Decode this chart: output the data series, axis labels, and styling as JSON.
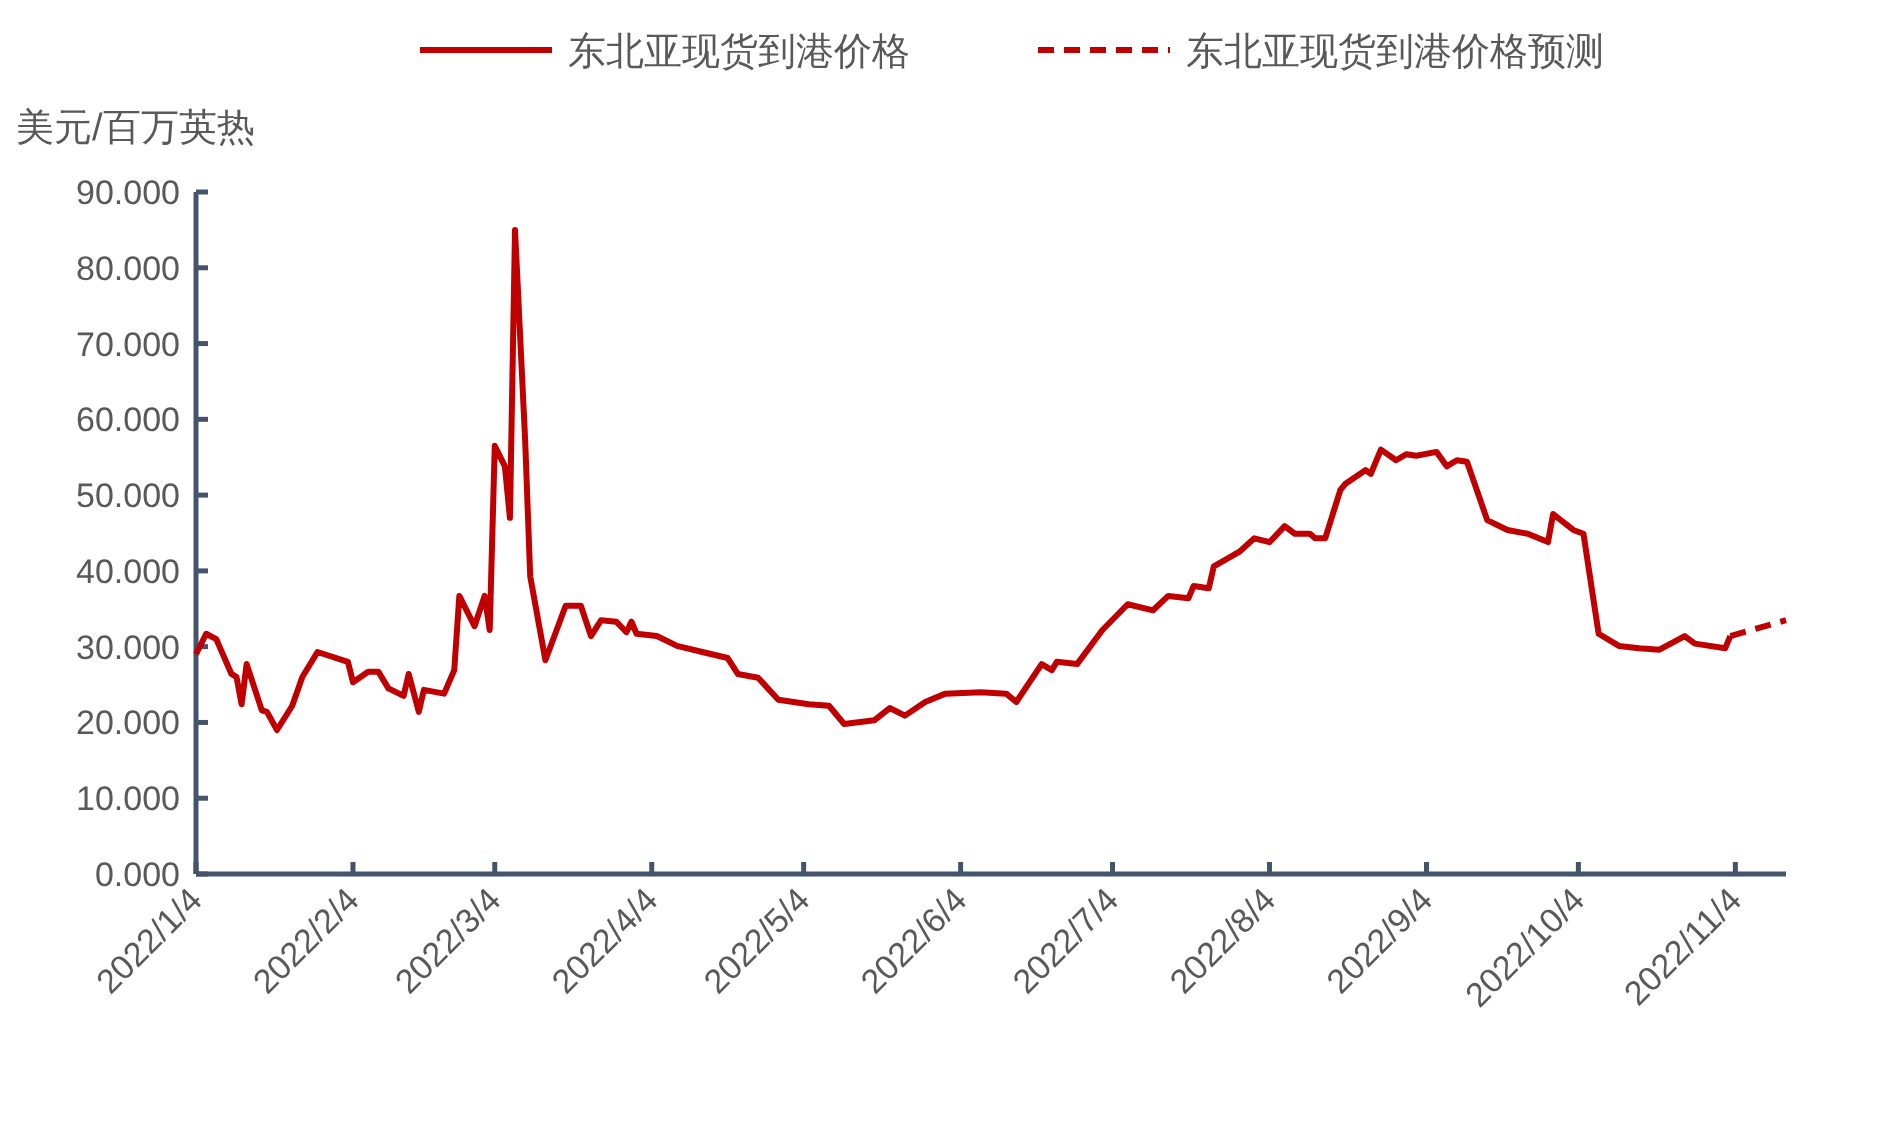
{
  "chart_data": {
    "type": "line",
    "ylabel": "美元/百万英热",
    "legend": "top",
    "grid": false,
    "xlim": [
      "2022-01-04",
      "2022-11-14"
    ],
    "xticks": [
      {
        "value": "2022-01-04",
        "label": "2022/1/4"
      },
      {
        "value": "2022-02-04",
        "label": "2022/2/4"
      },
      {
        "value": "2022-03-04",
        "label": "2022/3/4"
      },
      {
        "value": "2022-04-04",
        "label": "2022/4/4"
      },
      {
        "value": "2022-05-04",
        "label": "2022/5/4"
      },
      {
        "value": "2022-06-04",
        "label": "2022/6/4"
      },
      {
        "value": "2022-07-04",
        "label": "2022/7/4"
      },
      {
        "value": "2022-08-04",
        "label": "2022/8/4"
      },
      {
        "value": "2022-09-04",
        "label": "2022/9/4"
      },
      {
        "value": "2022-10-04",
        "label": "2022/10/4"
      },
      {
        "value": "2022-11-04",
        "label": "2022/11/4"
      }
    ],
    "ylim": [
      0,
      90
    ],
    "yticks": [
      {
        "value": 0,
        "label": "0.000"
      },
      {
        "value": 10,
        "label": "10.000"
      },
      {
        "value": 20,
        "label": "20.000"
      },
      {
        "value": 30,
        "label": "30.000"
      },
      {
        "value": 40,
        "label": "40.000"
      },
      {
        "value": 50,
        "label": "50.000"
      },
      {
        "value": 60,
        "label": "60.000"
      },
      {
        "value": 70,
        "label": "70.000"
      },
      {
        "value": 80,
        "label": "80.000"
      },
      {
        "value": 90,
        "label": "90.000"
      }
    ],
    "series": [
      {
        "name": "东北亚现货到港价格",
        "color": "#c00000",
        "line_style": "solid",
        "x": [
          "2022-01-04",
          "2022-01-06",
          "2022-01-08",
          "2022-01-11",
          "2022-01-12",
          "2022-01-13",
          "2022-01-14",
          "2022-01-17",
          "2022-01-18",
          "2022-01-20",
          "2022-01-23",
          "2022-01-25",
          "2022-01-28",
          "2022-02-03",
          "2022-02-04",
          "2022-02-07",
          "2022-02-09",
          "2022-02-11",
          "2022-02-14",
          "2022-02-15",
          "2022-02-17",
          "2022-02-18",
          "2022-02-22",
          "2022-02-24",
          "2022-02-25",
          "2022-02-28",
          "2022-03-02",
          "2022-03-03",
          "2022-03-04",
          "2022-03-06",
          "2022-03-07",
          "2022-03-08",
          "2022-03-10",
          "2022-03-11",
          "2022-03-14",
          "2022-03-18",
          "2022-03-21",
          "2022-03-23",
          "2022-03-25",
          "2022-03-28",
          "2022-03-30",
          "2022-03-31",
          "2022-04-01",
          "2022-04-05",
          "2022-04-09",
          "2022-04-14",
          "2022-04-19",
          "2022-04-21",
          "2022-04-25",
          "2022-04-29",
          "2022-05-05",
          "2022-05-09",
          "2022-05-12",
          "2022-05-18",
          "2022-05-21",
          "2022-05-24",
          "2022-05-28",
          "2022-06-01",
          "2022-06-08",
          "2022-06-13",
          "2022-06-15",
          "2022-06-20",
          "2022-06-22",
          "2022-06-23",
          "2022-06-27",
          "2022-07-02",
          "2022-07-07",
          "2022-07-12",
          "2022-07-15",
          "2022-07-19",
          "2022-07-20",
          "2022-07-23",
          "2022-07-24",
          "2022-07-29",
          "2022-08-01",
          "2022-08-04",
          "2022-08-07",
          "2022-08-09",
          "2022-08-12",
          "2022-08-13",
          "2022-08-15",
          "2022-08-18",
          "2022-08-19",
          "2022-08-23",
          "2022-08-24",
          "2022-08-26",
          "2022-08-29",
          "2022-08-31",
          "2022-09-02",
          "2022-09-06",
          "2022-09-08",
          "2022-09-10",
          "2022-09-12",
          "2022-09-16",
          "2022-09-20",
          "2022-09-24",
          "2022-09-28",
          "2022-09-29",
          "2022-10-03",
          "2022-10-05",
          "2022-10-08",
          "2022-10-12",
          "2022-10-16",
          "2022-10-20",
          "2022-10-25",
          "2022-10-27",
          "2022-11-02",
          "2022-11-03"
        ],
        "values": [
          29,
          31.7,
          31,
          26.4,
          26,
          22.4,
          27.7,
          21.6,
          21.4,
          19,
          22.2,
          26,
          29.3,
          28,
          25.3,
          26.7,
          26.7,
          24.5,
          23.5,
          26.4,
          21.4,
          24.3,
          23.8,
          26.9,
          36.7,
          32.7,
          36.7,
          32.2,
          56.5,
          53.8,
          47,
          85,
          57.3,
          39.3,
          28.2,
          35.4,
          35.4,
          31.4,
          33.5,
          33.3,
          31.9,
          33.3,
          31.7,
          31.4,
          30.1,
          29.3,
          28.5,
          26.4,
          25.9,
          23,
          22.4,
          22.2,
          19.8,
          20.3,
          21.9,
          20.9,
          22.7,
          23.8,
          24,
          23.8,
          22.7,
          27.7,
          26.9,
          28,
          27.7,
          32.2,
          35.6,
          34.8,
          36.7,
          36.4,
          38,
          37.7,
          40.6,
          42.5,
          44.3,
          43.8,
          45.9,
          44.9,
          44.9,
          44.3,
          44.3,
          50.7,
          51.5,
          53.3,
          52.8,
          56,
          54.6,
          55.4,
          55.2,
          55.7,
          53.8,
          54.6,
          54.4,
          46.7,
          45.4,
          44.9,
          43.8,
          47.5,
          45.4,
          44.9,
          31.7,
          30.1,
          29.8,
          29.6,
          31.4,
          30.4,
          29.8,
          31.4
        ]
      },
      {
        "name": "东北亚现货到港价格预测",
        "color": "#c00000",
        "line_style": "dashed",
        "x": [
          "2022-11-03",
          "2022-11-14"
        ],
        "values": [
          31.4,
          33.5
        ]
      }
    ]
  }
}
